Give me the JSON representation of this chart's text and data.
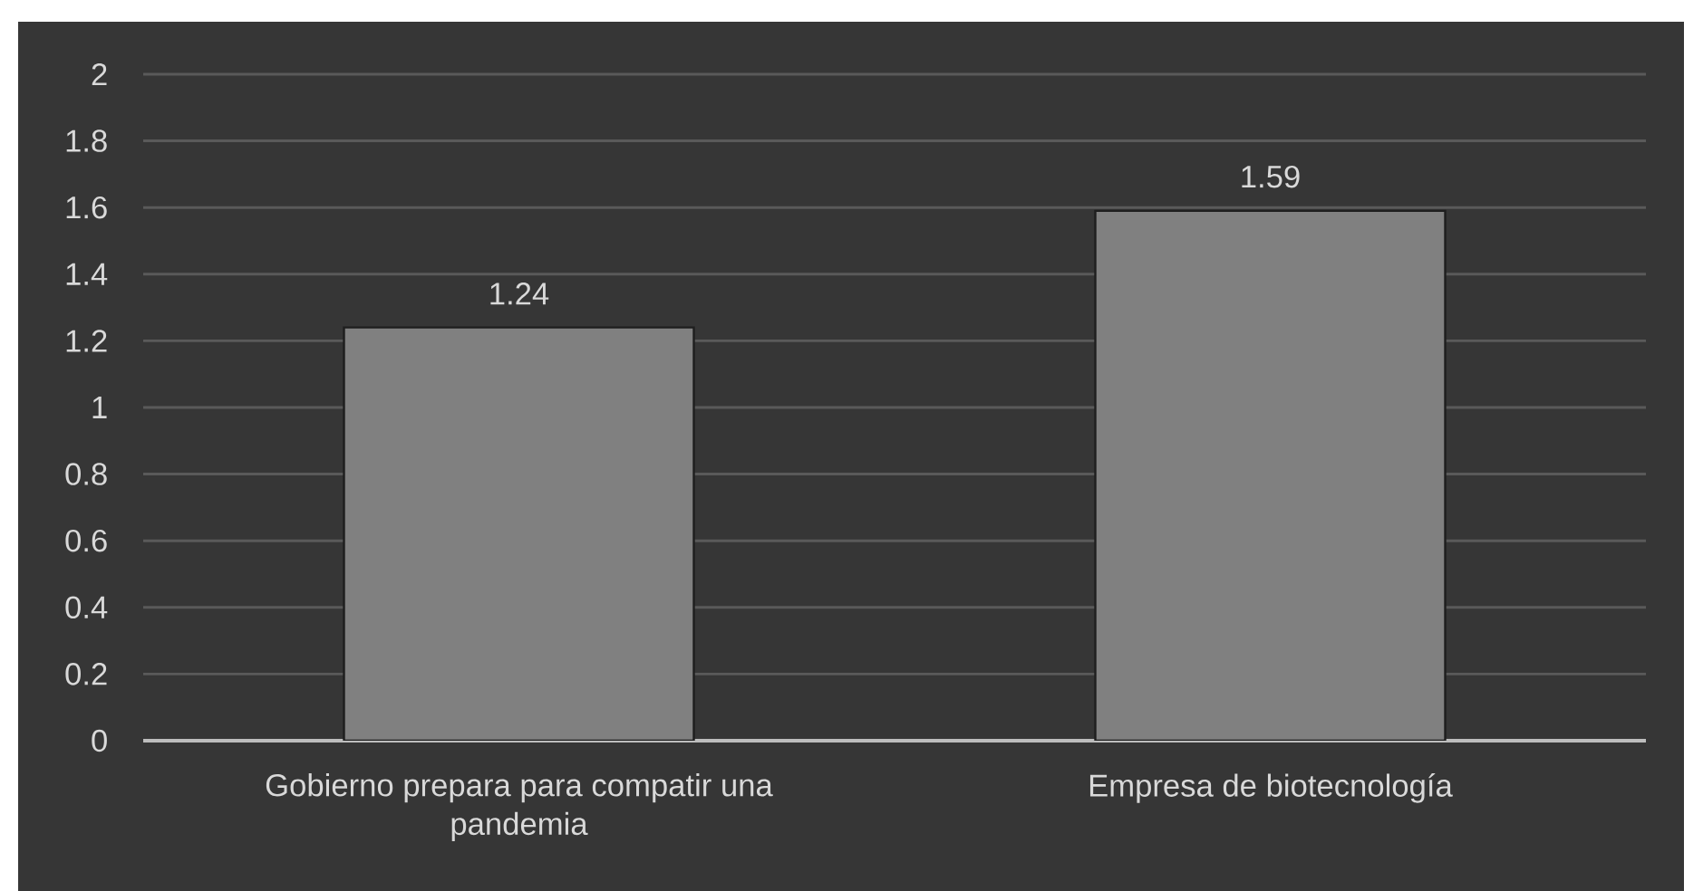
{
  "chart_data": {
    "type": "bar",
    "categories": [
      "Gobierno prepara para compatir una pandemia",
      "Empresa de biotecnología"
    ],
    "values": [
      1.24,
      1.59
    ],
    "color": "#808080",
    "ylim": [
      0,
      2
    ],
    "yticks": [
      0,
      0.2,
      0.4,
      0.6,
      0.8,
      1,
      1.2,
      1.4,
      1.6,
      1.8,
      2
    ],
    "grid": "y",
    "data_labels": true
  }
}
